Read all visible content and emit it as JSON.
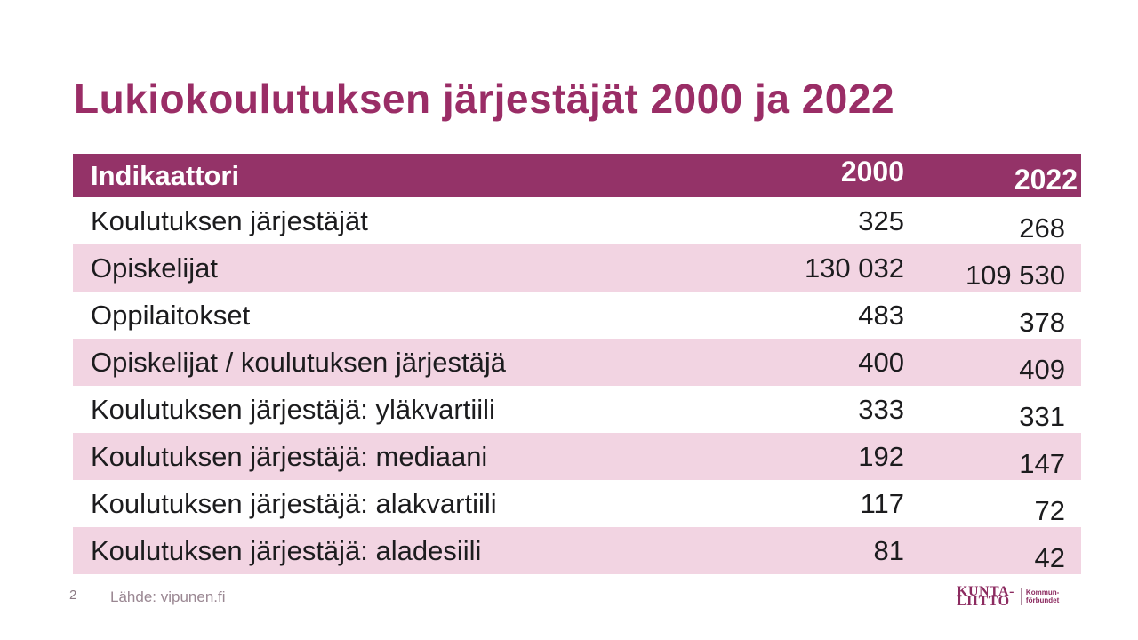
{
  "slide": {
    "title": "Lukiokoulutuksen järjestäjät 2000 ja 2022",
    "page_number": "2",
    "source": "Lähde: vipunen.fi"
  },
  "table": {
    "columns": {
      "indicator": "Indikaattori",
      "y2000": "2000",
      "y2022": "2022"
    },
    "rows": [
      {
        "label": "Koulutuksen järjestäjät",
        "v2000": "325",
        "v2022": "268"
      },
      {
        "label": "Opiskelijat",
        "v2000": "130 032",
        "v2022": "109 530"
      },
      {
        "label": "Oppilaitokset",
        "v2000": "483",
        "v2022": "378"
      },
      {
        "label": "Opiskelijat / koulutuksen järjestäjä",
        "v2000": "400",
        "v2022": "409"
      },
      {
        "label": "Koulutuksen järjestäjä: yläkvartiili",
        "v2000": "333",
        "v2022": "331"
      },
      {
        "label": "Koulutuksen järjestäjä: mediaani",
        "v2000": "192",
        "v2022": "147"
      },
      {
        "label": "Koulutuksen järjestäjä: alakvartiili",
        "v2000": "117",
        "v2022": "72"
      },
      {
        "label": "Koulutuksen järjestäjä: aladesiili",
        "v2000": "81",
        "v2022": "42"
      }
    ]
  },
  "logo": {
    "fi_line1": "KUNTA-",
    "fi_line2": "LIITTO",
    "sv_line1": "Kommun-",
    "sv_line2": "förbundet"
  },
  "colors": {
    "accent": "#943368",
    "title_text": "#9A2D66",
    "row_stripe": "#F2D4E2",
    "footer_text": "#9A8792",
    "logo": "#8C2B60"
  }
}
